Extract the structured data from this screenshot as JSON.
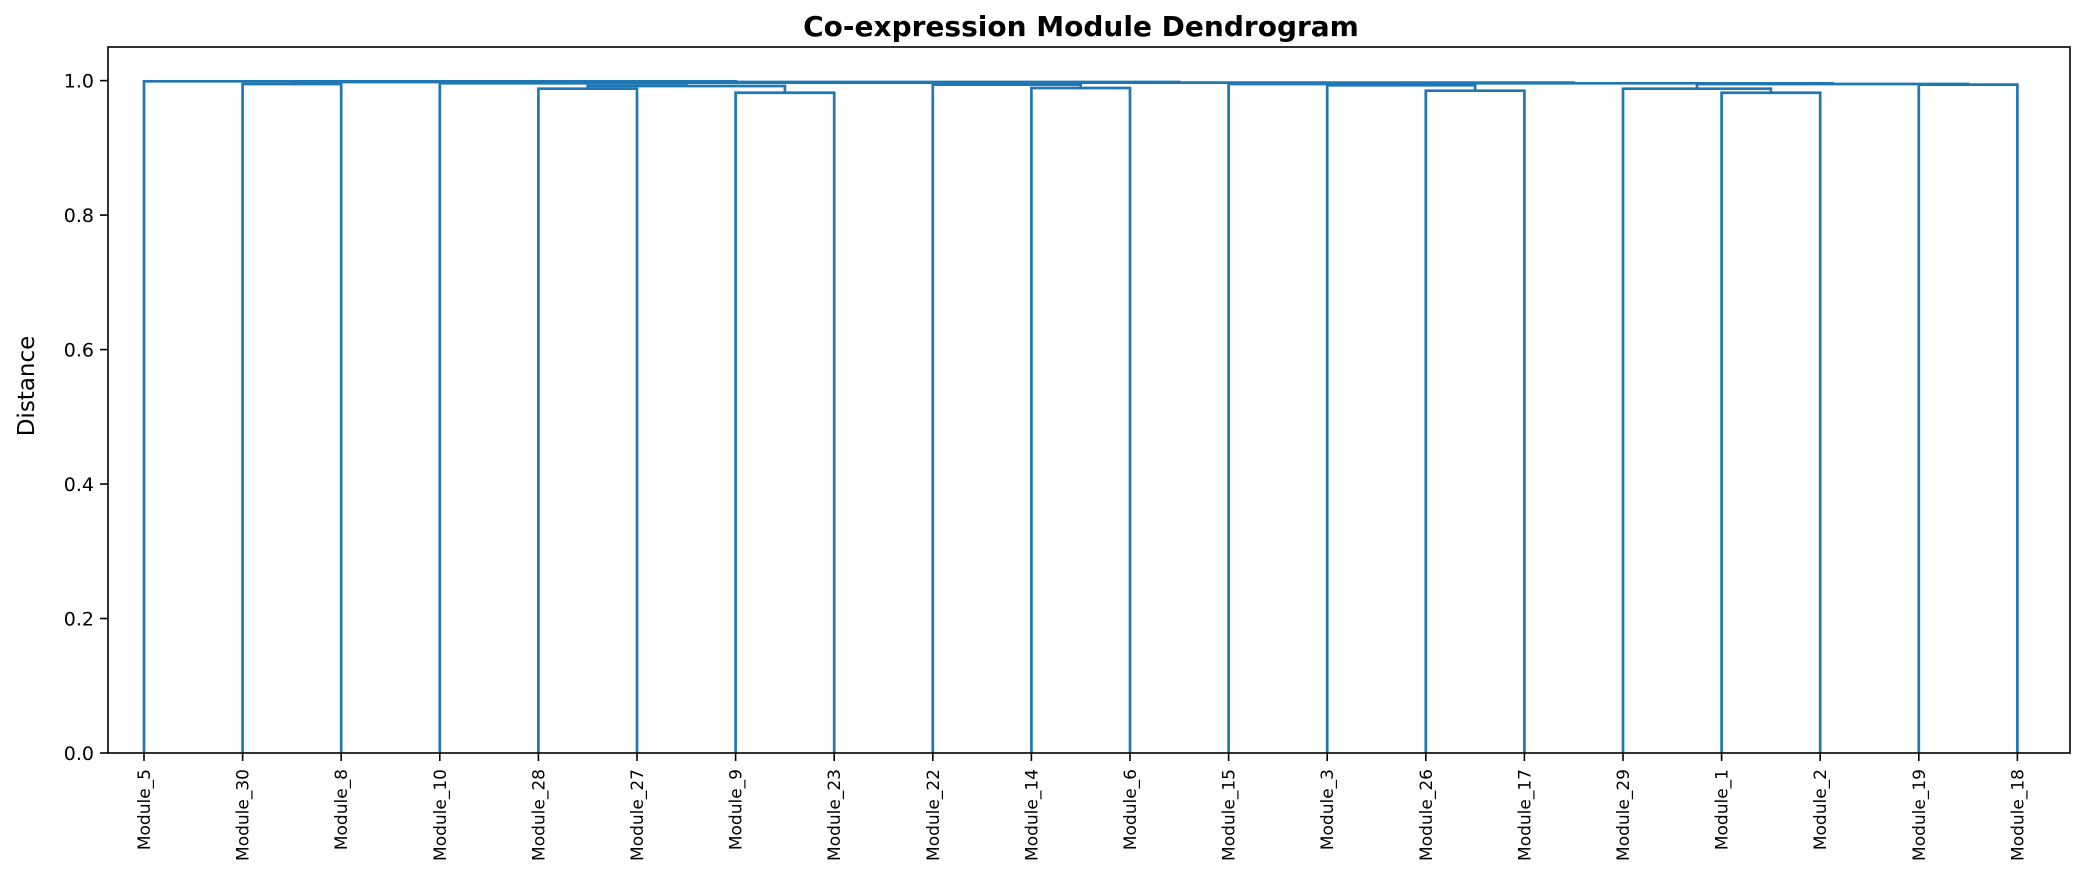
{
  "chart_data": {
    "type": "dendrogram",
    "title": "Co-expression Module Dendrogram",
    "xlabel": "",
    "ylabel": "Distance",
    "ylim": [
      0,
      1.05
    ],
    "yticks": [
      0.0,
      0.2,
      0.4,
      0.6,
      0.8,
      1.0
    ],
    "ytick_labels": [
      "0.0",
      "0.2",
      "0.4",
      "0.6",
      "0.8",
      "1.0"
    ],
    "grid": false,
    "color": "#1f77b4",
    "leaves": [
      "Module_5",
      "Module_30",
      "Module_8",
      "Module_10",
      "Module_28",
      "Module_27",
      "Module_9",
      "Module_23",
      "Module_22",
      "Module_14",
      "Module_6",
      "Module_15",
      "Module_3",
      "Module_26",
      "Module_17",
      "Module_29",
      "Module_1",
      "Module_2",
      "Module_19",
      "Module_18"
    ],
    "merges": [
      {
        "left": "Module_9",
        "right": "Module_23",
        "height": 0.982
      },
      {
        "left": "Module_1",
        "right": "Module_2",
        "height": 0.982
      },
      {
        "left": "Module_26",
        "right": "Module_17",
        "height": 0.985
      },
      {
        "left": "Module_28",
        "right": "Module_27",
        "height": 0.988
      },
      {
        "left": "Module_14",
        "right": "Module_6",
        "height": 0.989
      },
      {
        "left": "Module_29",
        "right": "Module_1+Module_2",
        "height": 0.988
      },
      {
        "left": "Module_28+Module_27",
        "right": "Module_9+Module_23",
        "height": 0.992
      },
      {
        "left": "Module_3",
        "right": "Module_26+Module_17",
        "height": 0.993
      },
      {
        "left": "Module_22",
        "right": "Module_14+Module_6",
        "height": 0.994
      },
      {
        "left": "Module_19",
        "right": "Module_18",
        "height": 0.994
      },
      {
        "left": "Module_30",
        "right": "Module_8",
        "height": 0.995
      },
      {
        "left": "Module_15",
        "right": "Module_3+Module_26+Module_17",
        "height": 0.995
      },
      {
        "left": "Module_29+Module_1+Module_2",
        "right": "Module_19+Module_18",
        "height": 0.995
      },
      {
        "left": "Module_10",
        "right": "Module_28+Module_27+Module_9+Module_23",
        "height": 0.996
      },
      {
        "left": "Module_15+Module_3+Module_26+Module_17",
        "right": "Module_29+Module_1+Module_2+Module_19+Module_18",
        "height": 0.996
      },
      {
        "left": "Module_10+Module_28+Module_27+Module_9+Module_23",
        "right": "Module_22+Module_14+Module_6",
        "height": 0.997
      },
      {
        "left": "Module_10+Module_28+Module_27+Module_9+Module_23+Module_22+Module_14+Module_6",
        "right": "Module_15+Module_3+Module_26+Module_17+Module_29+Module_1+Module_2+Module_19+Module_18",
        "height": 0.997
      },
      {
        "left": "Module_30+Module_8",
        "right": "Module_10+Module_28+Module_27+Module_9+Module_23+Module_22+Module_14+Module_6+Module_15+Module_3+Module_26+Module_17+Module_29+Module_1+Module_2+Module_19+Module_18",
        "height": 0.998
      },
      {
        "left": "Module_5",
        "right": "Module_30+Module_8+Module_10+Module_28+Module_27+Module_9+Module_23+Module_22+Module_14+Module_6+Module_15+Module_3+Module_26+Module_17+Module_29+Module_1+Module_2+Module_19+Module_18",
        "height": 0.999
      }
    ]
  }
}
